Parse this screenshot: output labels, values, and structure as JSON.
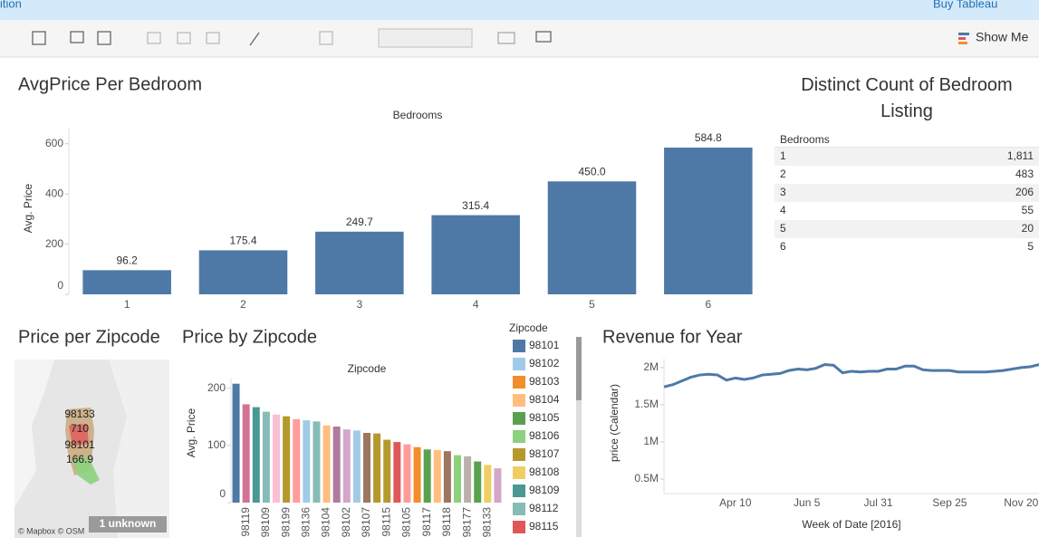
{
  "toolbar": {
    "left_text": "ition",
    "right_text": "Buy Tableau",
    "show_me": "Show Me"
  },
  "chart_data": [
    {
      "type": "bar",
      "title": "AvgPrice Per Bedroom",
      "x_label": "Bedrooms",
      "y_label": "Avg. Price",
      "categories": [
        "1",
        "2",
        "3",
        "4",
        "5",
        "6"
      ],
      "values": [
        96.2,
        175.4,
        249.7,
        315.4,
        450.0,
        584.8
      ],
      "value_labels": [
        "96.2",
        "175.4",
        "249.7",
        "315.4",
        "450.0",
        "584.8"
      ],
      "color": "#4e79a7",
      "ylim": [
        0,
        664
      ],
      "yticks": [
        0,
        200,
        400,
        600
      ]
    },
    {
      "type": "table",
      "title": "Distinct Count of Bedroom Listing",
      "header": "Bedrooms",
      "categories": [
        "1",
        "2",
        "3",
        "4",
        "5",
        "6"
      ],
      "values": [
        1811,
        483,
        206,
        55,
        20,
        5
      ],
      "value_labels": [
        "1,811",
        "483",
        "206",
        "55",
        "20",
        "5"
      ]
    },
    {
      "type": "map",
      "title": "Price per Zipcode",
      "labels": [
        "98133",
        "710",
        "98101",
        "166.9"
      ],
      "attribution": "© Mapbox © OSM",
      "note": "1 unknown"
    },
    {
      "type": "bar",
      "title": "Price by Zipcode",
      "x_label": "Zipcode",
      "y_label": "Avg. Price",
      "categories": [
        null,
        "98119",
        null,
        "98109",
        null,
        "98199",
        null,
        "98136",
        null,
        "98104",
        null,
        "98102",
        null,
        "98107",
        null,
        "98115",
        null,
        "98105",
        null,
        "98117",
        null,
        "98118",
        null,
        "98177",
        null,
        "98133",
        null
      ],
      "values": [
        208,
        172,
        167,
        159,
        154,
        151,
        146,
        144,
        142,
        135,
        133,
        128,
        126,
        122,
        121,
        110,
        106,
        102,
        97,
        93,
        92,
        90,
        83,
        81,
        72,
        66,
        60
      ],
      "colors": [
        "#4e79a7",
        "#d37295",
        "#499894",
        "#86bcb6",
        "#fabfd2",
        "#b6992d",
        "#ff9d9a",
        "#a0cbe8",
        "#86bcb6",
        "#ffbe7d",
        "#b07aa1",
        "#d4a6c8",
        "#a0cbe8",
        "#9d7660",
        "#b6992d",
        "#b6992d",
        "#e15759",
        "#ff9d9a",
        "#f28e2b",
        "#59a14f",
        "#ffbe7d",
        "#9d7660",
        "#8cd17d",
        "#bab0ac",
        "#59a14f",
        "#f1ce63",
        "#d4a6c8"
      ],
      "ylim": [
        0,
        217
      ],
      "yticks": [
        0,
        100,
        200
      ],
      "legend": {
        "title": "Zipcode",
        "entries": [
          {
            "name": "98101",
            "color": "#4e79a7"
          },
          {
            "name": "98102",
            "color": "#a0cbe8"
          },
          {
            "name": "98103",
            "color": "#f28e2b"
          },
          {
            "name": "98104",
            "color": "#ffbe7d"
          },
          {
            "name": "98105",
            "color": "#59a14f"
          },
          {
            "name": "98106",
            "color": "#8cd17d"
          },
          {
            "name": "98107",
            "color": "#b6992d"
          },
          {
            "name": "98108",
            "color": "#f1ce63"
          },
          {
            "name": "98109",
            "color": "#499894"
          },
          {
            "name": "98112",
            "color": "#86bcb6"
          },
          {
            "name": "98115",
            "color": "#e15759"
          }
        ]
      }
    },
    {
      "type": "line",
      "title": "Revenue for Year",
      "x_label": "Week of Date [2016]",
      "y_label": "price (Calendar)",
      "categories": [
        null,
        null,
        null,
        null,
        null,
        null,
        null,
        null,
        "Apr 10",
        null,
        null,
        null,
        null,
        null,
        null,
        null,
        "Jun 5",
        null,
        null,
        null,
        null,
        null,
        null,
        null,
        "Jul 31",
        null,
        null,
        null,
        null,
        null,
        null,
        null,
        "Sep 25",
        null,
        null,
        null,
        null,
        null,
        null,
        null,
        "Nov 20",
        null,
        null
      ],
      "values": [
        1740000,
        1770000,
        1820000,
        1870000,
        1900000,
        1910000,
        1900000,
        1830000,
        1860000,
        1840000,
        1860000,
        1900000,
        1910000,
        1920000,
        1960000,
        1980000,
        1970000,
        1990000,
        2040000,
        2030000,
        1930000,
        1950000,
        1940000,
        1950000,
        1950000,
        1980000,
        1980000,
        2020000,
        2020000,
        1970000,
        1960000,
        1960000,
        1960000,
        1940000,
        1940000,
        1940000,
        1940000,
        1950000,
        1960000,
        1980000,
        2000000,
        2010000,
        2040000
      ],
      "color": "#4e79a7",
      "ylim": [
        305000,
        2120000
      ],
      "yticks": [
        {
          "value": 500000,
          "label": "0.5M"
        },
        {
          "value": 1000000,
          "label": "1M"
        },
        {
          "value": 1500000,
          "label": "1.5M"
        },
        {
          "value": 2000000,
          "label": "2M"
        }
      ]
    }
  ]
}
